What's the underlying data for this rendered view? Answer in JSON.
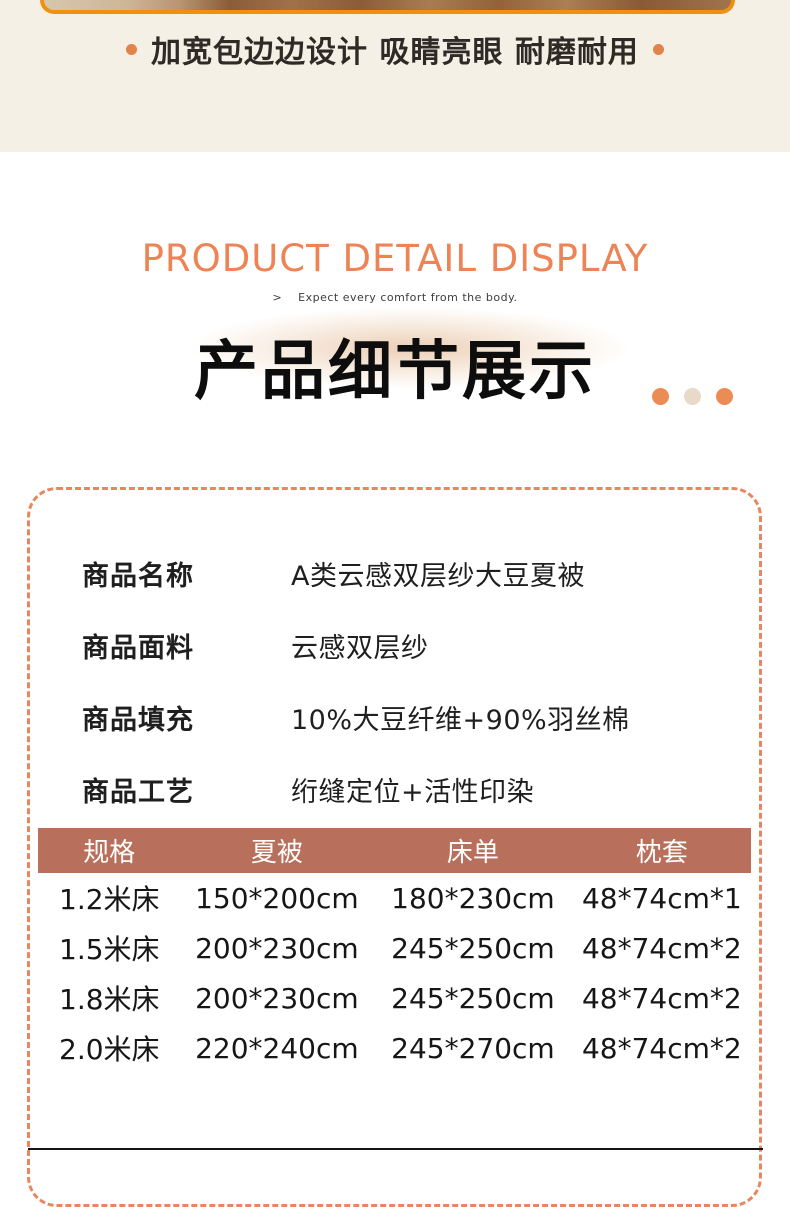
{
  "page": {
    "top_band_color": "#f5f0e5",
    "background": "#ffffff"
  },
  "hero": {
    "headline": "加宽包边边设计 吸睛亮眼 耐磨耐用",
    "frame_color": "#ef9011",
    "bullet_color": "#e0834c"
  },
  "section_header": {
    "title_en": "PRODUCT DETAIL DISPLAY",
    "subtitle_en": ">    Expect every comfort from the body.",
    "title_cn": "产品细节展示",
    "accent_color": "#ee8355",
    "dot_colors": [
      "#ec8c55",
      "#e8d9c8",
      "#ec8c55"
    ]
  },
  "product_info": {
    "border_color": "#e8875f",
    "rows": [
      {
        "label": "商品名称",
        "value": "A类云感双层纱大豆夏被"
      },
      {
        "label": "商品面料",
        "value": "云感双层纱"
      },
      {
        "label": "商品填充",
        "value": "10%大豆纤维+90%羽丝棉"
      },
      {
        "label": "商品工艺",
        "value": "绗缝定位+活性印染"
      }
    ]
  },
  "size_table": {
    "header_bg": "#b8705c",
    "columns": [
      "规格",
      "夏被",
      "床单",
      "枕套"
    ],
    "rows": [
      [
        "1.2米床",
        "150*200cm",
        "180*230cm",
        "48*74cm*1"
      ],
      [
        "1.5米床",
        "200*230cm",
        "245*250cm",
        "48*74cm*2"
      ],
      [
        "1.8米床",
        "200*230cm",
        "245*250cm",
        "48*74cm*2"
      ],
      [
        "2.0米床",
        "220*240cm",
        "245*270cm",
        "48*74cm*2"
      ]
    ]
  }
}
